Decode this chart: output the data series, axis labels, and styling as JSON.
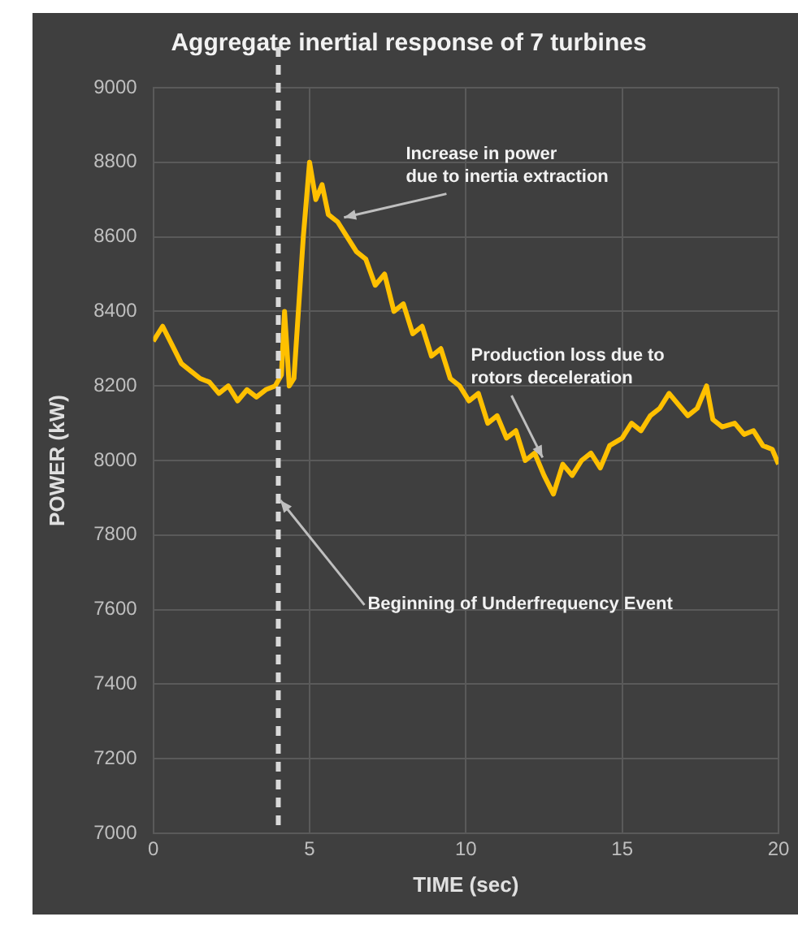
{
  "chart_data": {
    "type": "line",
    "title": "Aggregate inertial response of 7 turbines",
    "xlabel": "TIME (sec)",
    "ylabel": "POWER (kW)",
    "x": [
      0,
      0.3,
      0.6,
      0.9,
      1.2,
      1.5,
      1.8,
      2.1,
      2.4,
      2.7,
      3.0,
      3.3,
      3.6,
      3.9,
      4.1,
      4.2,
      4.35,
      4.5,
      4.8,
      5.0,
      5.2,
      5.4,
      5.6,
      5.9,
      6.2,
      6.5,
      6.8,
      7.1,
      7.4,
      7.7,
      8.0,
      8.3,
      8.6,
      8.9,
      9.2,
      9.5,
      9.8,
      10.1,
      10.4,
      10.7,
      11.0,
      11.3,
      11.6,
      11.9,
      12.2,
      12.5,
      12.8,
      13.1,
      13.4,
      13.7,
      14.0,
      14.3,
      14.6,
      15.0,
      15.3,
      15.6,
      15.9,
      16.2,
      16.5,
      16.8,
      17.1,
      17.4,
      17.7,
      17.9,
      18.2,
      18.6,
      18.9,
      19.2,
      19.5,
      19.8,
      20
    ],
    "series": [
      {
        "color": "#ffc000",
        "values": [
          8320,
          8360,
          8310,
          8260,
          8240,
          8220,
          8210,
          8180,
          8200,
          8160,
          8190,
          8170,
          8190,
          8200,
          8230,
          8400,
          8200,
          8220,
          8600,
          8800,
          8700,
          8740,
          8660,
          8640,
          8600,
          8560,
          8540,
          8470,
          8500,
          8400,
          8420,
          8340,
          8360,
          8280,
          8300,
          8220,
          8200,
          8160,
          8180,
          8100,
          8120,
          8060,
          8080,
          8000,
          8020,
          7960,
          7910,
          7990,
          7960,
          8000,
          8020,
          7980,
          8040,
          8060,
          8100,
          8080,
          8120,
          8140,
          8180,
          8150,
          8120,
          8140,
          8200,
          8110,
          8090,
          8100,
          8070,
          8080,
          8040,
          8030,
          7990
        ]
      }
    ],
    "xlim": [
      0,
      20
    ],
    "xticks": [
      0,
      5,
      10,
      15,
      20
    ],
    "ylim": [
      7000,
      9000
    ],
    "yticks": [
      7000,
      7200,
      7400,
      7600,
      7800,
      8000,
      8200,
      8400,
      8600,
      8800,
      9000
    ],
    "grid": true,
    "legend": false,
    "marker": "none",
    "line_style": "solid",
    "ref_lines": [
      {
        "axis": "x",
        "value": 4,
        "color": "#d9d9d9",
        "line_style": "dashed"
      }
    ],
    "annotations": [
      {
        "text": "Increase in power\ndue to inertia extraction",
        "x": 6,
        "y": 8650
      },
      {
        "text": "Production loss due to\nrotors deceleration",
        "x": 12.5,
        "y": 8000
      },
      {
        "text": "Beginning of Underfrequency Event",
        "x": 4,
        "y": 7900
      }
    ]
  }
}
